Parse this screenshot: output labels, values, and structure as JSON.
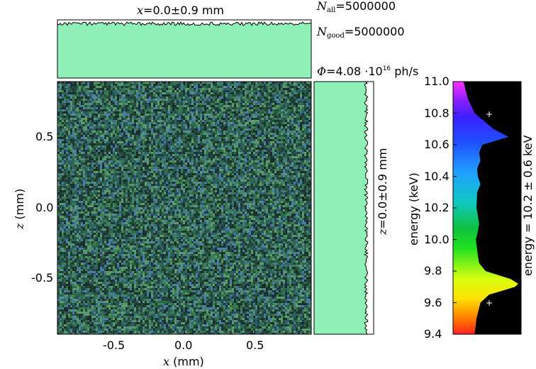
{
  "chart_data": {
    "type": "heatmap",
    "main": {
      "xlabel_var": "x",
      "xlabel_unit": "(mm)",
      "ylabel_var": "z",
      "ylabel_unit": "(mm)",
      "xlim": [
        -0.9,
        0.9
      ],
      "ylim": [
        -0.9,
        0.9
      ],
      "xticks": [
        "-0.5",
        "0.0",
        "0.5"
      ],
      "yticks": [
        "0.5",
        "0.0",
        "-0.5"
      ],
      "colors": [
        "#274b3c",
        "#1e3e34",
        "#2f6b4b",
        "#3d7f55",
        "#4a7da6",
        "#1b2e2c",
        "#5a9a6b",
        "#2c5c6a"
      ]
    },
    "top_histogram": {
      "label_var": "x",
      "label_value": "0.0",
      "label_pm": "±",
      "label_err": "0.9",
      "label_unit": "mm",
      "color": "#8ff0b8"
    },
    "side_histogram": {
      "label_var": "z",
      "label_value": "0.0",
      "label_pm": "±",
      "label_err": "0.9",
      "label_unit": "mm",
      "color": "#8ff0b8"
    },
    "stats": {
      "n_all_symbol": "N",
      "n_all_sub": "all",
      "n_all_value": "5000000",
      "n_good_symbol": "N",
      "n_good_sub": "good",
      "n_good_value": "5000000",
      "flux_symbol": "Φ",
      "flux_mantissa": "4.08",
      "flux_base": "10",
      "flux_exp": "16",
      "flux_unit": "ph/s"
    },
    "energy": {
      "axis_label": "energy (keV)",
      "yticks": [
        "11.0",
        "10.8",
        "10.6",
        "10.4",
        "10.2",
        "10.0",
        "9.8",
        "9.6",
        "9.4"
      ],
      "ylim": [
        9.4,
        11.0
      ],
      "side_label": "energy = 10.2 ± 0.6 keV",
      "profile_energy": [
        9.4,
        9.5,
        9.6,
        9.65,
        9.7,
        9.72,
        9.75,
        9.8,
        9.85,
        9.9,
        10.0,
        10.05,
        10.1,
        10.2,
        10.3,
        10.35,
        10.4,
        10.45,
        10.5,
        10.55,
        10.6,
        10.65,
        10.7,
        10.8,
        10.9,
        11.0
      ],
      "profile_level": [
        0.33,
        0.36,
        0.42,
        0.55,
        0.95,
        1.0,
        0.88,
        0.5,
        0.4,
        0.38,
        0.35,
        0.38,
        0.4,
        0.36,
        0.37,
        0.42,
        0.38,
        0.37,
        0.42,
        0.4,
        0.45,
        0.85,
        0.62,
        0.33,
        0.22,
        0.16
      ]
    }
  }
}
